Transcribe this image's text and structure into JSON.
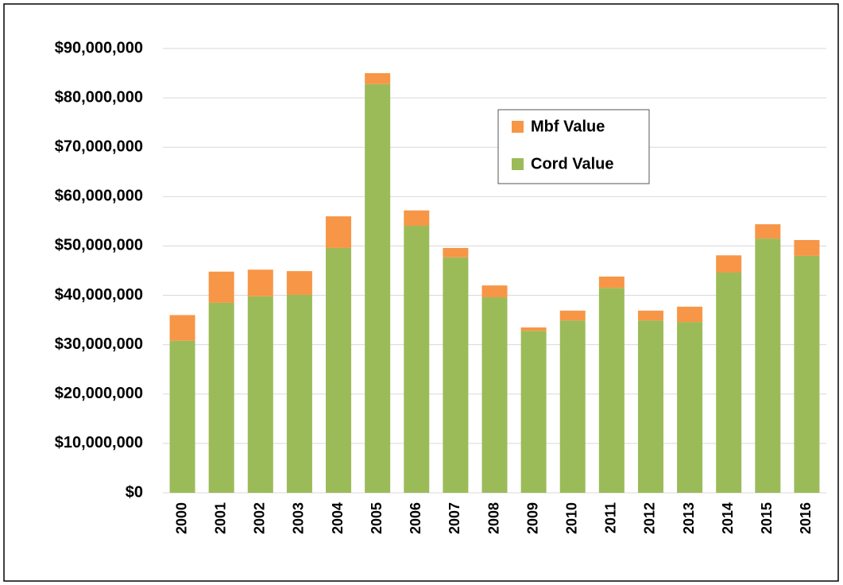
{
  "chart_data": {
    "type": "stacked_bar",
    "categories": [
      "2000",
      "2001",
      "2002",
      "2003",
      "2004",
      "2005",
      "2006",
      "2007",
      "2008",
      "2009",
      "2010",
      "2011",
      "2012",
      "2013",
      "2014",
      "2015",
      "2016"
    ],
    "series": [
      {
        "name": "Cord Value",
        "color": "#9bbb59",
        "values": [
          30800000,
          38500000,
          39800000,
          40100000,
          49600000,
          82800000,
          54100000,
          47700000,
          39600000,
          32800000,
          34900000,
          41500000,
          34900000,
          34600000,
          44600000,
          51500000,
          48000000
        ]
      },
      {
        "name": "Mbf Value",
        "color": "#f79646",
        "values": [
          5200000,
          6300000,
          5400000,
          4800000,
          6400000,
          2200000,
          3100000,
          1900000,
          2400000,
          700000,
          2000000,
          2300000,
          2000000,
          3100000,
          3500000,
          2900000,
          3200000
        ]
      }
    ],
    "ylim": [
      0,
      90000000
    ],
    "yticks": [
      {
        "value": 0,
        "label": "$0"
      },
      {
        "value": 10000000,
        "label": "$10,000,000"
      },
      {
        "value": 20000000,
        "label": "$20,000,000"
      },
      {
        "value": 30000000,
        "label": "$30,000,000"
      },
      {
        "value": 40000000,
        "label": "$40,000,000"
      },
      {
        "value": 50000000,
        "label": "$50,000,000"
      },
      {
        "value": 60000000,
        "label": "$60,000,000"
      },
      {
        "value": 70000000,
        "label": "$70,000,000"
      },
      {
        "value": 80000000,
        "label": "$80,000,000"
      },
      {
        "value": 90000000,
        "label": "$90,000,000"
      }
    ],
    "grid": true
  }
}
